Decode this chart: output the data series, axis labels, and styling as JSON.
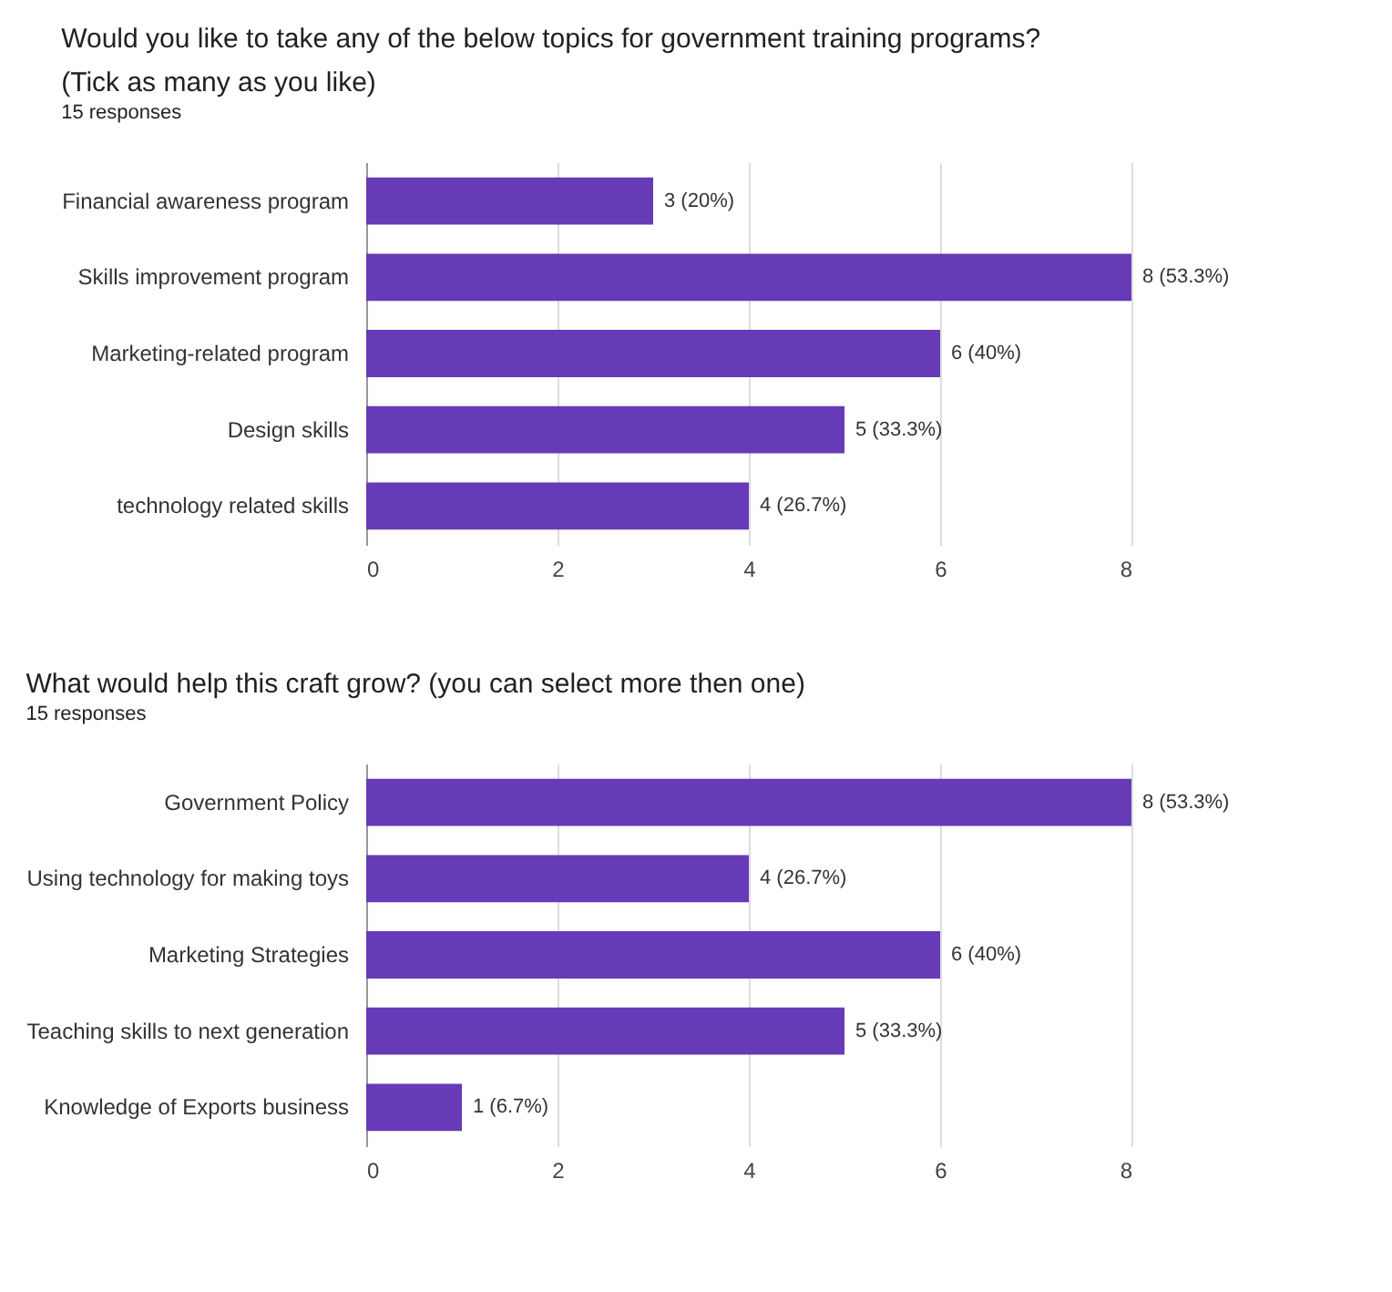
{
  "chart_data": [
    {
      "type": "bar",
      "orientation": "horizontal",
      "title": "Would you like to take any of the below topics for government training programs? (Tick as many as you like)",
      "subtitle": "15 responses",
      "categories": [
        "Financial awareness program",
        "Skills improvement program",
        "Marketing-related program",
        "Design skills",
        "technology related skills"
      ],
      "values": [
        3,
        8,
        6,
        5,
        4
      ],
      "value_labels": [
        "3 (20%)",
        "8 (53.3%)",
        "6 (40%)",
        "5 (33.3%)",
        "4 (26.7%)"
      ],
      "color": "#673ab7",
      "xlim": [
        0,
        8
      ],
      "xticks": [
        0,
        2,
        4,
        6,
        8
      ],
      "grid": "x"
    },
    {
      "type": "bar",
      "orientation": "horizontal",
      "title": "What would help this craft grow? (you can select more then one)",
      "subtitle": "15 responses",
      "categories": [
        "Government Policy",
        "Using technology for making toys",
        "Marketing Strategies",
        "Teaching skills to next generation",
        "Knowledge of Exports business"
      ],
      "values": [
        8,
        4,
        6,
        5,
        1
      ],
      "value_labels": [
        "8 (53.3%)",
        "4 (26.7%)",
        "6 (40%)",
        "5 (33.3%)",
        "1 (6.7%)"
      ],
      "color": "#673ab7",
      "xlim": [
        0,
        8
      ],
      "xticks": [
        0,
        2,
        4,
        6,
        8
      ],
      "grid": "x"
    }
  ]
}
